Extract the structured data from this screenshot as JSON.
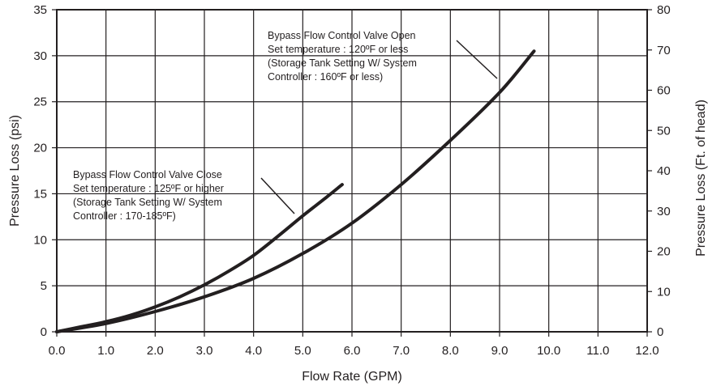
{
  "chart_data": {
    "type": "line",
    "title": "",
    "xlabel": "Flow Rate (GPM)",
    "ylabel": "Pressure Loss (psi)",
    "y2label": "Pressure Loss (Ft. of head)",
    "xlim": [
      0,
      12
    ],
    "ylim": [
      0,
      35
    ],
    "y2lim": [
      0,
      80
    ],
    "grid": true,
    "legend": "none",
    "x_ticks": [
      "0.0",
      "1.0",
      "2.0",
      "3.0",
      "4.0",
      "5.0",
      "6.0",
      "7.0",
      "8.0",
      "9.0",
      "10.0",
      "11.0",
      "12.0"
    ],
    "y_ticks": [
      "0",
      "5",
      "10",
      "15",
      "20",
      "25",
      "30",
      "35"
    ],
    "y2_ticks": [
      "0",
      "10",
      "20",
      "30",
      "40",
      "50",
      "60",
      "70",
      "80"
    ],
    "series": [
      {
        "x": [
          0,
          0.5,
          1.0,
          1.5,
          2.0,
          2.5,
          3.0,
          3.5,
          4.0,
          4.5,
          5.0,
          5.5,
          5.8
        ],
        "y": [
          0,
          0.55,
          1.1,
          1.8,
          2.7,
          3.8,
          5.1,
          6.6,
          8.3,
          10.4,
          12.6,
          14.7,
          16.0
        ]
      },
      {
        "x": [
          0,
          1.0,
          2.0,
          3.0,
          4.0,
          5.0,
          6.0,
          7.0,
          8.0,
          9.0,
          9.7
        ],
        "y": [
          0,
          0.9,
          2.2,
          3.8,
          5.8,
          8.5,
          11.8,
          16.0,
          20.8,
          26.0,
          30.5
        ]
      }
    ],
    "annotations": [
      {
        "lines": [
          "Bypass Flow Control Valve Open",
          "Set temperature : 120ºF or less",
          "(Storage Tank Setting W/ System",
          "Controller : 160ºF or less)"
        ]
      },
      {
        "lines": [
          "Bypass Flow Control Valve Close",
          "Set temperature : 125ºF or higher",
          "(Storage Tank Setting W/ System",
          "Controller : 170-185ºF)"
        ]
      }
    ],
    "line_color": "#231f20",
    "grid_color": "#231f20"
  }
}
